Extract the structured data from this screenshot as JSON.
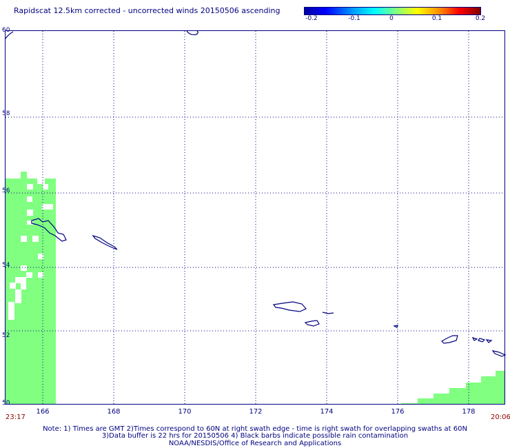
{
  "title": "Rapidscat 12.5km corrected - uncorrected winds 20150506 ascending",
  "colorbar": {
    "ticks": [
      "-0.2",
      "-0.1",
      "0",
      "0.1",
      "0.2"
    ]
  },
  "map": {
    "lat_labels": [
      "60",
      "58",
      "56",
      "54",
      "52",
      "50"
    ],
    "lon_labels": [
      "166",
      "168",
      "170",
      "172",
      "174",
      "176",
      "178"
    ],
    "start_time": "23:17",
    "end_time": "20:06",
    "swath_color": "#80ff80",
    "coast_color": "#000080"
  },
  "notes": {
    "line1": "Note: 1) Times are GMT 2)Times correspond to 60N at right swath edge - time is right swath for overlapping swaths at 60N",
    "line2": "3)Data buffer is 22 hrs for 20150506 4) Black barbs indicate possible rain contamination",
    "line3": "NOAA/NESDIS/Office of Research and Applications"
  }
}
